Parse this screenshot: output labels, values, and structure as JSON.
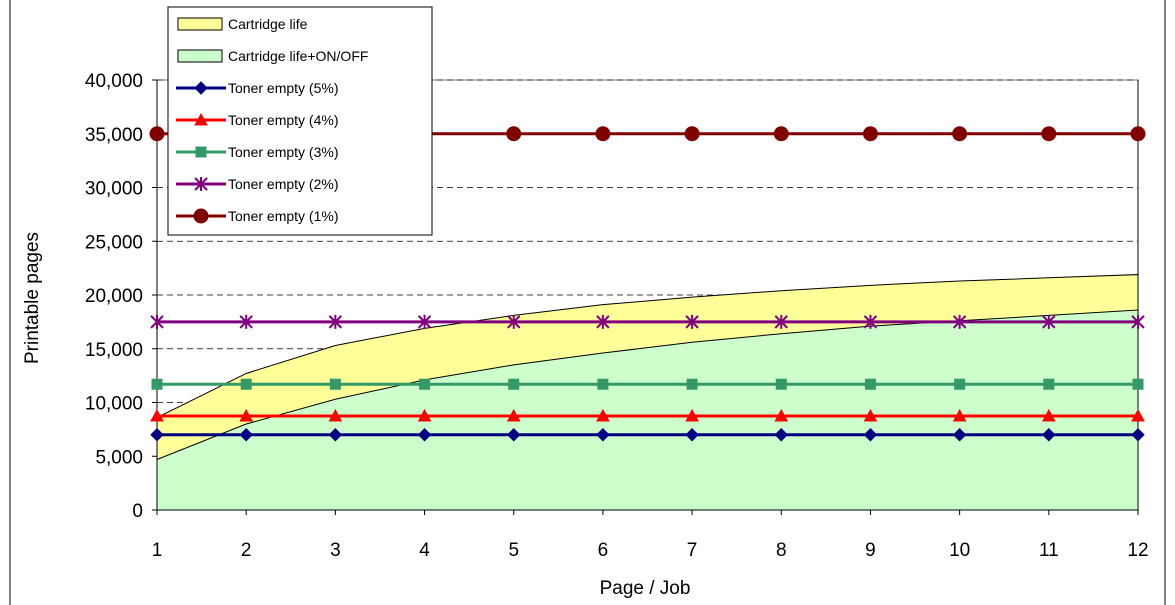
{
  "chart_data": {
    "type": "line",
    "title": "",
    "xlabel": "Page / Job",
    "ylabel": "Printable pages",
    "x": [
      1,
      2,
      3,
      4,
      5,
      6,
      7,
      8,
      9,
      10,
      11,
      12
    ],
    "xlim": [
      1,
      12
    ],
    "ylim": [
      0,
      40000
    ],
    "y_tick_labels": [
      "0",
      "5,000",
      "10,000",
      "15,000",
      "20,000",
      "25,000",
      "30,000",
      "35,000",
      "40,000"
    ],
    "x_tick_labels": [
      "1",
      "2",
      "3",
      "4",
      "5",
      "6",
      "7",
      "8",
      "9",
      "10",
      "11",
      "12"
    ],
    "grid": "horizontal dashed",
    "legend_position": "top-left",
    "areas": [
      {
        "name": "Cartridge life",
        "color": "#ffff99",
        "values": [
          8600,
          12700,
          15300,
          16900,
          18100,
          19100,
          19800,
          20400,
          20900,
          21300,
          21600,
          21900
        ]
      },
      {
        "name": "Cartridge life+ON/OFF",
        "color": "#ccffcc",
        "values": [
          4700,
          8000,
          10300,
          12100,
          13500,
          14600,
          15600,
          16400,
          17100,
          17600,
          18100,
          18600
        ]
      }
    ],
    "series": [
      {
        "name": "Toner empty (5%)",
        "color": "#000080",
        "marker": "diamond",
        "values": [
          7000,
          7000,
          7000,
          7000,
          7000,
          7000,
          7000,
          7000,
          7000,
          7000,
          7000,
          7000
        ]
      },
      {
        "name": "Toner empty (4%)",
        "color": "#ff0000",
        "marker": "triangle",
        "values": [
          8750,
          8750,
          8750,
          8750,
          8750,
          8750,
          8750,
          8750,
          8750,
          8750,
          8750,
          8750
        ]
      },
      {
        "name": "Toner empty (3%)",
        "color": "#339966",
        "marker": "square",
        "values": [
          11700,
          11700,
          11700,
          11700,
          11700,
          11700,
          11700,
          11700,
          11700,
          11700,
          11700,
          11700
        ]
      },
      {
        "name": "Toner empty (2%)",
        "color": "#800080",
        "marker": "asterisk",
        "values": [
          17500,
          17500,
          17500,
          17500,
          17500,
          17500,
          17500,
          17500,
          17500,
          17500,
          17500,
          17500
        ]
      },
      {
        "name": "Toner empty (1%)",
        "color": "#800000",
        "marker": "circle",
        "values": [
          35000,
          35000,
          35000,
          35000,
          35000,
          35000,
          35000,
          35000,
          35000,
          35000,
          35000,
          35000
        ]
      }
    ]
  }
}
